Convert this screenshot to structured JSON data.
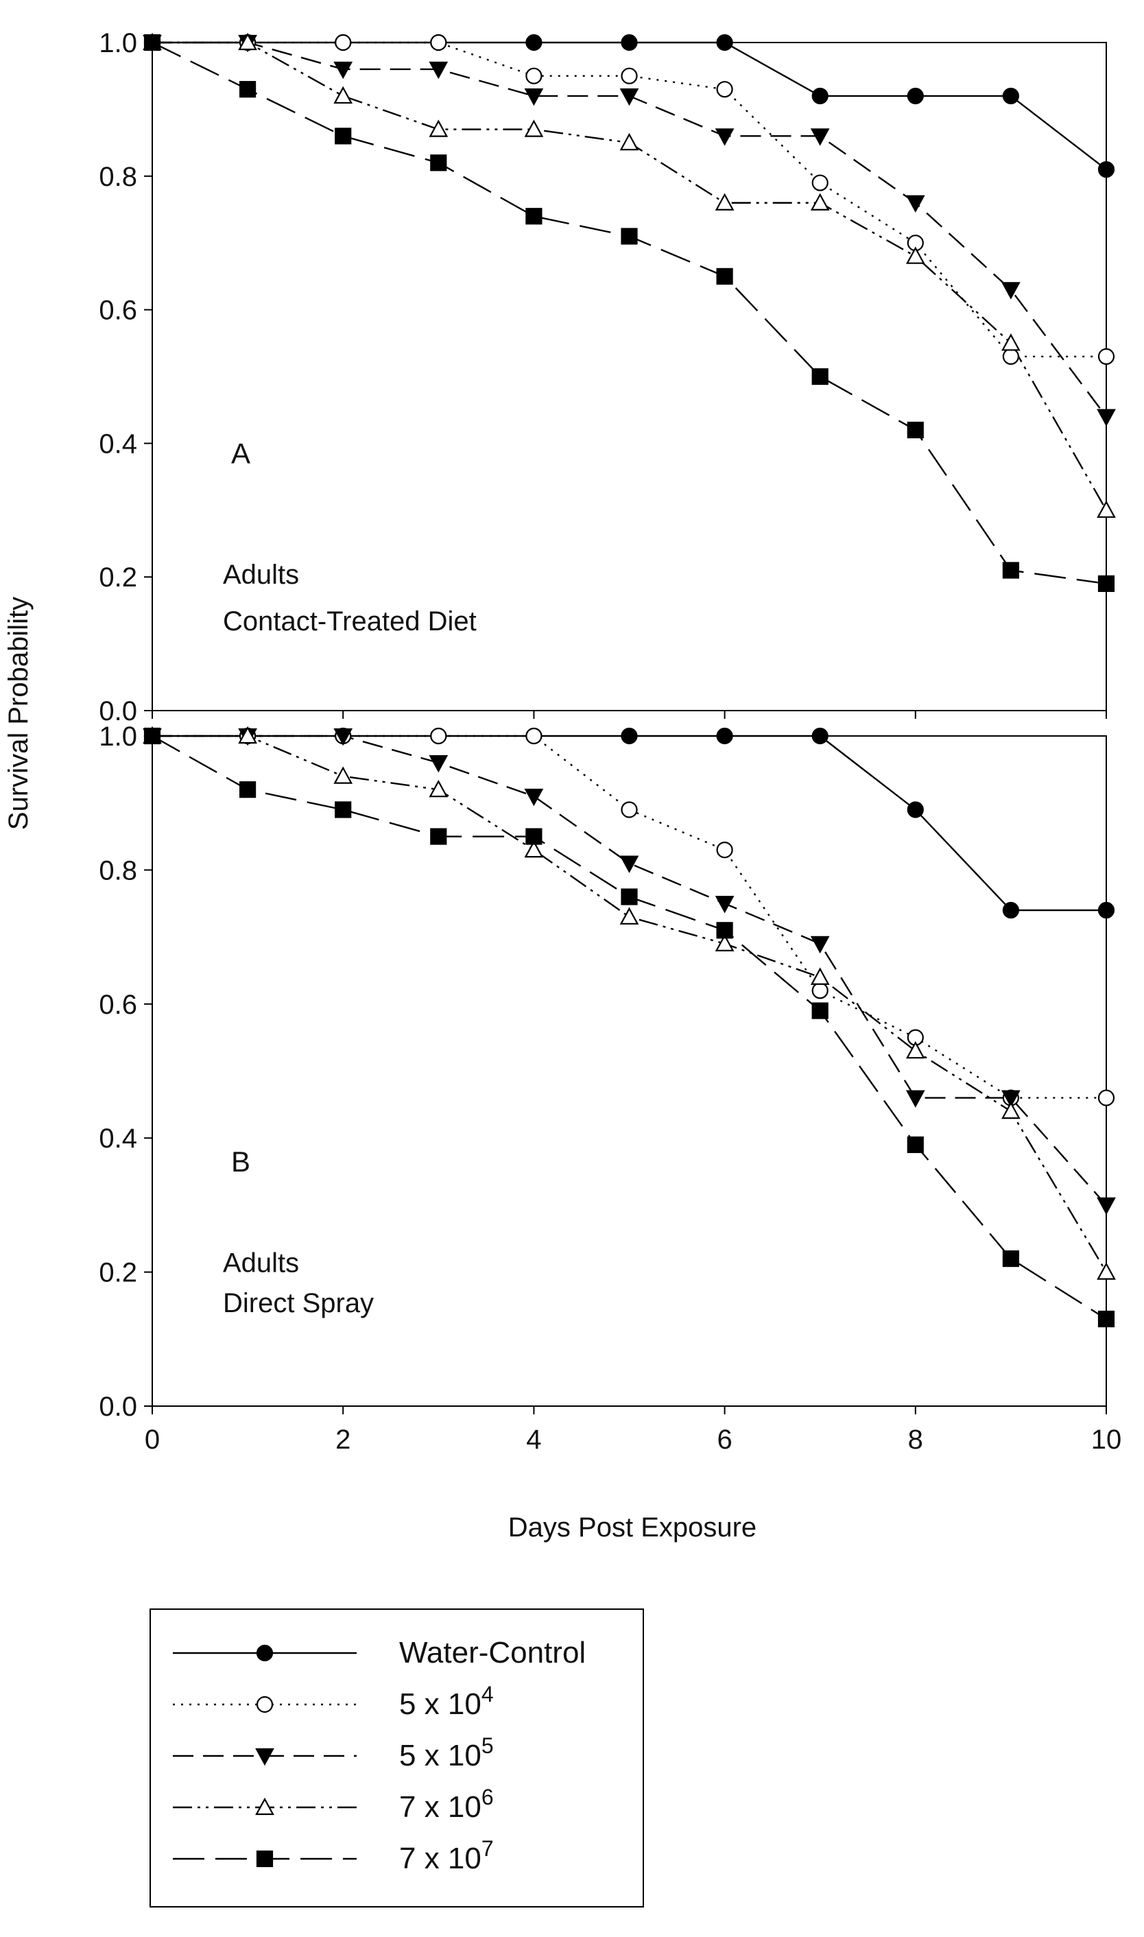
{
  "figure": {
    "ylabel": "Survival Probability",
    "xlabel": "Days Post Exposure"
  },
  "series_styles": [
    {
      "key": "water",
      "color": "#000000",
      "marker": "circle-filled",
      "line": "solid"
    },
    {
      "key": "c5e4",
      "color": "#000000",
      "marker": "circle-open",
      "line": "dotted"
    },
    {
      "key": "c5e5",
      "color": "#000000",
      "marker": "triangle-down-filled",
      "line": "dashed"
    },
    {
      "key": "c7e6",
      "color": "#000000",
      "marker": "triangle-up-open",
      "line": "dash-dot-dot"
    },
    {
      "key": "c7e7",
      "color": "#000000",
      "marker": "square-filled",
      "line": "long-dash"
    }
  ],
  "legend": {
    "placement": "bottom-left",
    "entries": [
      {
        "base": "Water-Control",
        "sup": ""
      },
      {
        "base": "5 x 10",
        "sup": "4"
      },
      {
        "base": "5 x 10",
        "sup": "5"
      },
      {
        "base": "7 x 10",
        "sup": "6"
      },
      {
        "base": "7 x 10",
        "sup": "7"
      }
    ]
  },
  "chart_data": [
    {
      "type": "line",
      "panel_label": "A",
      "annotation_line1": "Adults",
      "annotation_line2": "Contact-Treated Diet",
      "xlim": [
        0,
        10
      ],
      "ylim": [
        0,
        1
      ],
      "x": [
        0,
        1,
        2,
        3,
        4,
        5,
        6,
        7,
        8,
        9,
        10
      ],
      "xticks": [],
      "yticks": [
        "0.0",
        "0.2",
        "0.4",
        "0.6",
        "0.8",
        "1.0"
      ],
      "series": [
        {
          "name": "Water-Control",
          "values": [
            1.0,
            1.0,
            1.0,
            1.0,
            1.0,
            1.0,
            1.0,
            0.92,
            0.92,
            0.92,
            0.81
          ]
        },
        {
          "name": "5 x 10^4",
          "values": [
            1.0,
            1.0,
            1.0,
            1.0,
            0.95,
            0.95,
            0.93,
            0.79,
            0.7,
            0.53,
            0.53
          ]
        },
        {
          "name": "5 x 10^5",
          "values": [
            1.0,
            1.0,
            0.96,
            0.96,
            0.92,
            0.92,
            0.86,
            0.86,
            0.76,
            0.63,
            0.44
          ]
        },
        {
          "name": "7 x 10^6",
          "values": [
            1.0,
            1.0,
            0.92,
            0.87,
            0.87,
            0.85,
            0.76,
            0.76,
            0.68,
            0.55,
            0.3
          ]
        },
        {
          "name": "7 x 10^7",
          "values": [
            1.0,
            0.93,
            0.86,
            0.82,
            0.74,
            0.71,
            0.65,
            0.5,
            0.42,
            0.21,
            0.19
          ]
        }
      ]
    },
    {
      "type": "line",
      "panel_label": "B",
      "annotation_line1": "Adults",
      "annotation_line2": "Direct Spray",
      "xlim": [
        0,
        10
      ],
      "ylim": [
        0,
        1
      ],
      "x": [
        0,
        1,
        2,
        3,
        4,
        5,
        6,
        7,
        8,
        9,
        10
      ],
      "xticks": [
        "0",
        "2",
        "4",
        "6",
        "8",
        "10"
      ],
      "yticks": [
        "0.0",
        "0.2",
        "0.4",
        "0.6",
        "0.8",
        "1.0"
      ],
      "series": [
        {
          "name": "Water-Control",
          "values": [
            1.0,
            1.0,
            1.0,
            1.0,
            1.0,
            1.0,
            1.0,
            1.0,
            0.89,
            0.74,
            0.74
          ]
        },
        {
          "name": "5 x 10^4",
          "values": [
            1.0,
            1.0,
            1.0,
            1.0,
            1.0,
            0.89,
            0.83,
            0.62,
            0.55,
            0.46,
            0.46
          ]
        },
        {
          "name": "5 x 10^5",
          "values": [
            1.0,
            1.0,
            1.0,
            0.96,
            0.91,
            0.81,
            0.75,
            0.69,
            0.46,
            0.46,
            0.3
          ]
        },
        {
          "name": "7 x 10^6",
          "values": [
            1.0,
            1.0,
            0.94,
            0.92,
            0.83,
            0.73,
            0.69,
            0.64,
            0.53,
            0.44,
            0.2
          ]
        },
        {
          "name": "7 x 10^7",
          "values": [
            1.0,
            0.92,
            0.89,
            0.85,
            0.85,
            0.76,
            0.71,
            0.59,
            0.39,
            0.22,
            0.13
          ]
        }
      ]
    }
  ]
}
